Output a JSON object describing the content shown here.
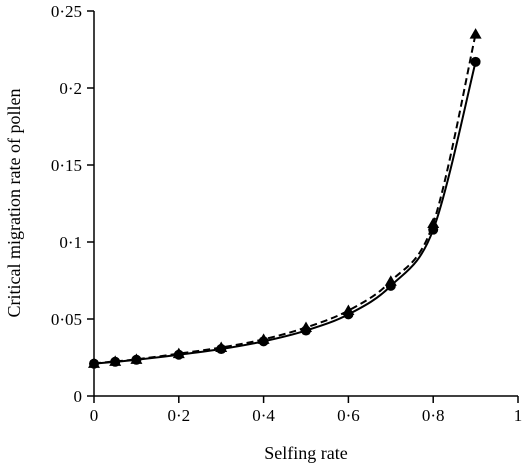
{
  "chart_data": {
    "type": "line",
    "title": "",
    "xlabel": "Selfing rate",
    "ylabel": "Critical migration rate of pollen",
    "xlim": [
      0,
      1
    ],
    "ylim": [
      0,
      0.25
    ],
    "x_ticks": [
      0,
      0.2,
      0.4,
      0.6,
      0.8,
      1
    ],
    "x_tick_labels": [
      "0",
      "0·2",
      "0·4",
      "0·6",
      "0·8",
      "1"
    ],
    "y_ticks": [
      0,
      0.05,
      0.1,
      0.15,
      0.2,
      0.25
    ],
    "y_tick_labels": [
      "0",
      "0·05",
      "0·1",
      "0·15",
      "0·2",
      "0·25"
    ],
    "grid": false,
    "legend": "none",
    "series": [
      {
        "style": "solid",
        "marker": "circle",
        "color": "#000000",
        "x": [
          0,
          0.05,
          0.1,
          0.2,
          0.3,
          0.4,
          0.5,
          0.6,
          0.7,
          0.8,
          0.9
        ],
        "y": [
          0.021,
          0.0222,
          0.0235,
          0.0268,
          0.0305,
          0.0355,
          0.0425,
          0.053,
          0.0715,
          0.108,
          0.217
        ]
      },
      {
        "style": "dashed",
        "marker": "triangle",
        "color": "#000000",
        "x": [
          0,
          0.05,
          0.1,
          0.2,
          0.3,
          0.4,
          0.5,
          0.6,
          0.7,
          0.8,
          0.9
        ],
        "y": [
          0.0212,
          0.0225,
          0.0238,
          0.0275,
          0.0315,
          0.0368,
          0.0445,
          0.0555,
          0.0745,
          0.112,
          0.235
        ]
      }
    ]
  }
}
